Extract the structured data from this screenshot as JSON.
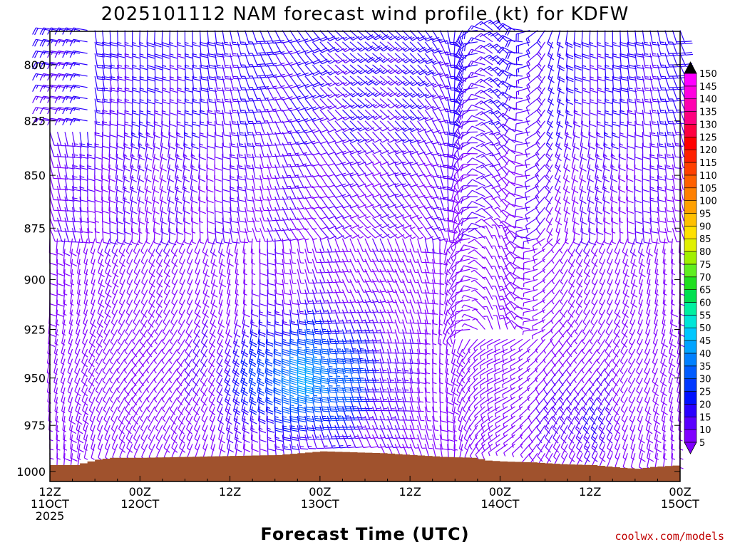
{
  "chart_data": {
    "type": "wind-barb-profile",
    "title": "2025101112 NAM forecast wind profile (kt) for KDFW",
    "xlabel": "Forecast Time (UTC)",
    "ylabel": "",
    "y_axis": {
      "unit": "hPa",
      "range": [
        1000,
        780
      ],
      "ticks": [
        800,
        825,
        850,
        875,
        900,
        925,
        950,
        975,
        1000
      ],
      "tick_labels": [
        "800",
        "825",
        "850",
        "875",
        "900",
        "925",
        "950",
        "975",
        "1000"
      ]
    },
    "x_axis": {
      "unit": "forecast hour",
      "range": [
        0,
        84
      ],
      "ticks": [
        {
          "hour": 0,
          "line1": "12Z",
          "line2": "11OCT",
          "line3": "2025"
        },
        {
          "hour": 12,
          "line1": "00Z",
          "line2": "12OCT",
          "line3": ""
        },
        {
          "hour": 24,
          "line1": "12Z",
          "line2": "",
          "line3": ""
        },
        {
          "hour": 36,
          "line1": "00Z",
          "line2": "13OCT",
          "line3": ""
        },
        {
          "hour": 48,
          "line1": "12Z",
          "line2": "",
          "line3": ""
        },
        {
          "hour": 60,
          "line1": "00Z",
          "line2": "14OCT",
          "line3": ""
        },
        {
          "hour": 72,
          "line1": "12Z",
          "line2": "",
          "line3": ""
        },
        {
          "hour": 84,
          "line1": "00Z",
          "line2": "15OCT",
          "line3": ""
        }
      ]
    },
    "surface_pressure": {
      "hours": [
        0,
        3,
        6,
        8,
        12,
        18,
        24,
        30,
        33,
        36,
        40,
        44,
        48,
        52,
        56,
        58,
        60,
        64,
        68,
        72,
        76,
        78,
        80,
        84
      ],
      "pressure": [
        996.5,
        996.5,
        993.5,
        992.5,
        992.5,
        992,
        991.5,
        991,
        990,
        989,
        989.5,
        990,
        991,
        992,
        992.5,
        994,
        994.5,
        995,
        996,
        996.5,
        998,
        998.5,
        997.5,
        996.5
      ]
    },
    "wind_field": {
      "hour_step": 1,
      "levels_hPa": [
        785,
        790,
        795,
        800,
        805,
        810,
        815,
        820,
        825,
        830,
        835,
        840,
        845,
        850,
        855,
        860,
        865,
        870,
        875,
        880,
        885,
        890,
        895,
        900,
        905,
        910,
        915,
        920,
        925,
        930,
        935,
        940,
        945,
        950,
        955,
        960,
        965,
        970,
        975,
        980,
        985,
        990,
        995
      ],
      "description": "Wind barbs every forecast hour at each 5 hPa level above ground; speeds 5-45 kt, strongest (30-45 kt, southerly to south-southwesterly) in a low-level jet near 930-960 hPa during the night of 12-13 Oct; weak northerly/northwesterly flow aloft near 14 Oct 00Z-06Z."
    },
    "colorbar": {
      "unit": "kt",
      "labels": [
        5,
        10,
        15,
        20,
        25,
        30,
        35,
        40,
        45,
        50,
        55,
        60,
        65,
        70,
        75,
        80,
        85,
        90,
        95,
        100,
        105,
        110,
        115,
        120,
        125,
        130,
        135,
        140,
        145,
        150
      ],
      "colors": [
        "#8000ff",
        "#5a00ff",
        "#2a00ff",
        "#0010ff",
        "#0038ff",
        "#005cff",
        "#0080ff",
        "#00a4ff",
        "#00c8ff",
        "#00e6d8",
        "#00f0a0",
        "#00e050",
        "#20e020",
        "#60ee20",
        "#a0f000",
        "#e0f000",
        "#ffe000",
        "#ffc000",
        "#ffa000",
        "#ff8000",
        "#ff6000",
        "#ff4000",
        "#ff2000",
        "#ff0000",
        "#ff0040",
        "#ff0080",
        "#ff00b0",
        "#ff00e0",
        "#ff00ff"
      ]
    },
    "colors": {
      "surface_fill": "#a0522d",
      "credit": "#c00000",
      "frame": "#000000"
    }
  },
  "credit": "coolwx.com/models"
}
